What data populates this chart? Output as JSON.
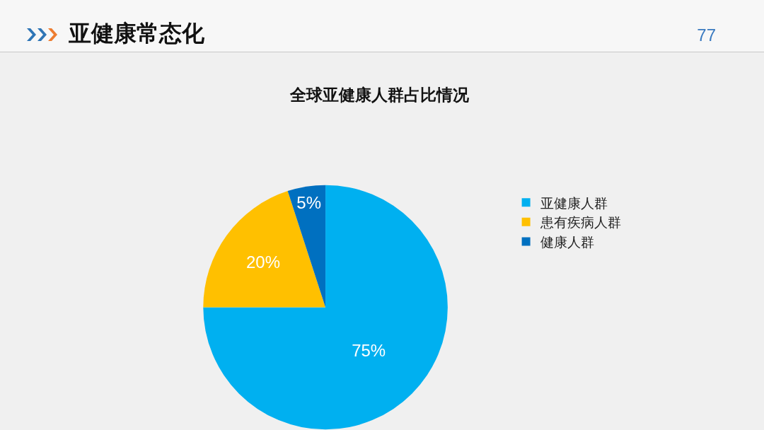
{
  "chart_data": {
    "type": "pie",
    "title": "亚健康常态化",
    "subtitle": "全球亚健康人群占比情况",
    "annotations": [
      "77"
    ],
    "categories": [
      "亚健康人群",
      "患有疾病人群",
      "健康人群"
    ],
    "values": [
      75,
      20,
      5
    ],
    "colors": [
      "#00b0f0",
      "#ffc000",
      "#0070c0"
    ],
    "value_labels": [
      "75%",
      "20%",
      "5%"
    ],
    "legend": "right"
  }
}
